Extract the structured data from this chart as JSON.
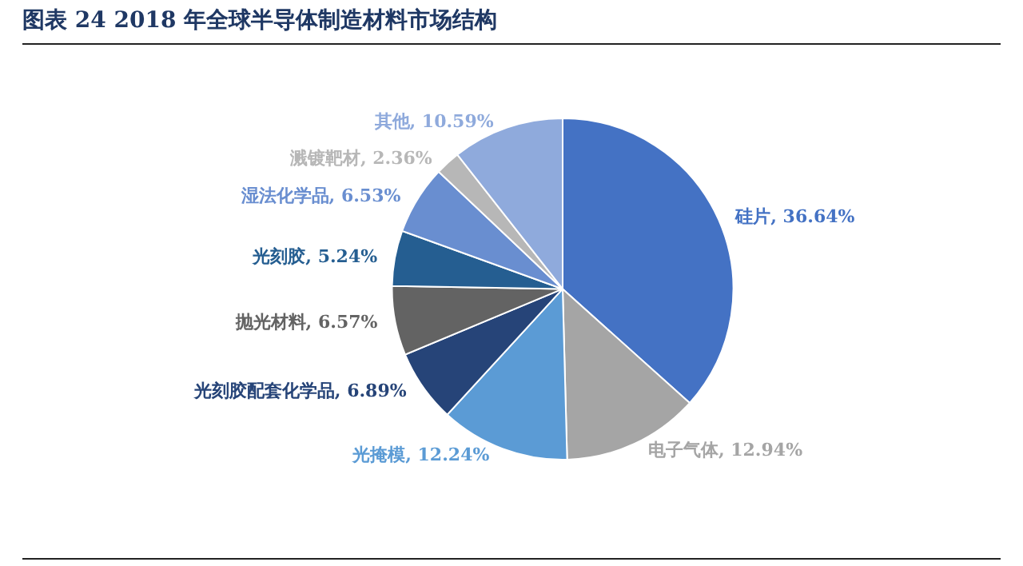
{
  "chart_data": {
    "type": "pie",
    "title": "图表 24 2018 年全球半导体制造材料市场结构",
    "categories": [
      "硅片",
      "电子气体",
      "光掩模",
      "光刻胶配套化学品",
      "抛光材料",
      "光刻胶",
      "湿法化学品",
      "溅镀靶材",
      "其他"
    ],
    "values": [
      36.64,
      12.94,
      12.24,
      6.89,
      6.57,
      5.24,
      6.53,
      2.36,
      10.59
    ],
    "colors": [
      "#4472c4",
      "#a5a5a5",
      "#5b9bd5",
      "#264478",
      "#636363",
      "#255e91",
      "#698ed0",
      "#b7b7b7",
      "#8faadc"
    ],
    "value_labels": [
      ", 36.64%",
      ", 12.94%",
      ", 12.24%",
      ", 6.89%",
      ", 6.57%",
      ", 5.24%",
      ", 6.53%",
      ", 2.36%",
      ", 10.59%"
    ],
    "legend": false
  }
}
